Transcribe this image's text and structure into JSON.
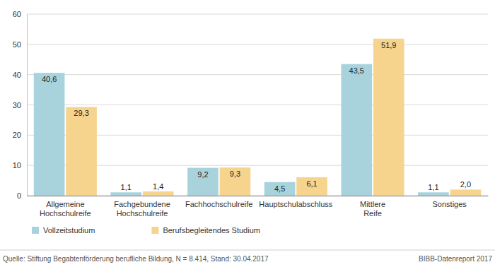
{
  "chart_data": {
    "type": "bar",
    "categories": [
      "Allgemeine Hochschulreife",
      "Fachgebundene Hochschulreife",
      "Fachhochschulreife",
      "Hauptschulabschluss",
      "Mittlere Reife",
      "Sonstiges"
    ],
    "series": [
      {
        "name": "Vollzeitstudium",
        "color": "#a9d3dc",
        "values": [
          40.6,
          1.1,
          9.2,
          4.5,
          43.5,
          1.1
        ],
        "value_labels": [
          "40,6",
          "1,1",
          "9,2",
          "4,5",
          "43,5",
          "1,1"
        ]
      },
      {
        "name": "Berufsbegleitendes Studium",
        "color": "#f7d48e",
        "values": [
          29.3,
          1.4,
          9.3,
          6.1,
          51.9,
          2.0
        ],
        "value_labels": [
          "29,3",
          "1,4",
          "9,3",
          "6,1",
          "51,9",
          "2,0"
        ]
      }
    ],
    "ylim": [
      0,
      60
    ],
    "yticks": [
      0,
      10,
      20,
      30,
      40,
      50,
      60
    ],
    "grid": true,
    "data_labels": true,
    "legend": "bottom-left",
    "annotations": [
      "Quelle: Stiftung Begabtenförderung berufliche Bildung, N = 8.414, Stand: 30.04.2017",
      "BIBB-Datenreport 2017"
    ]
  }
}
